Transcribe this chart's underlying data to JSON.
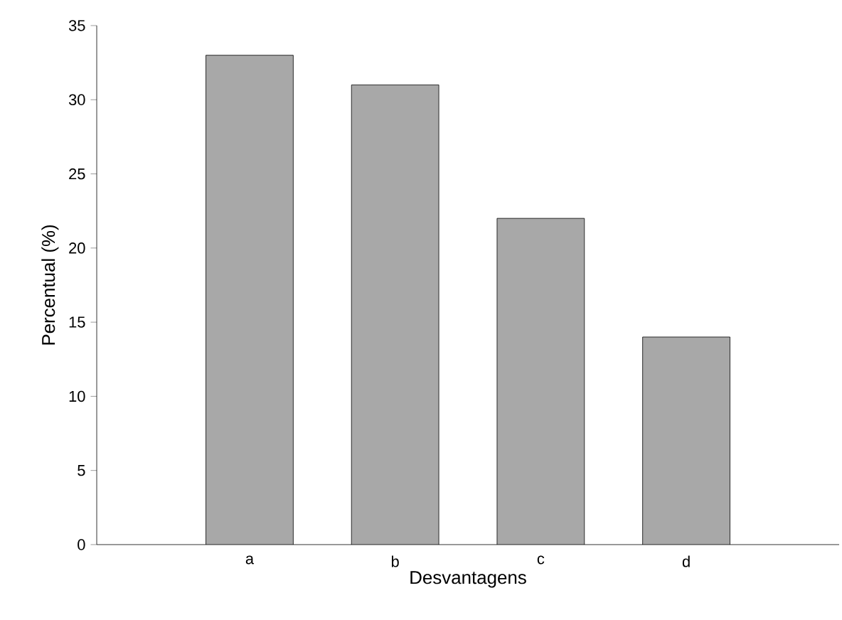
{
  "chart_data": {
    "type": "bar",
    "categories": [
      "a",
      "b",
      "c",
      "d"
    ],
    "values": [
      33,
      31,
      22,
      14
    ],
    "colors": [
      "#a8a8a8",
      "#a8a8a8",
      "#a8a8a8",
      "#a8a8a8"
    ],
    "xlabel": "Desvantagens",
    "ylabel": "Percentual (%)",
    "ylim": [
      0,
      35
    ],
    "yticks": [
      0,
      5,
      10,
      15,
      20,
      25,
      30,
      35
    ]
  }
}
